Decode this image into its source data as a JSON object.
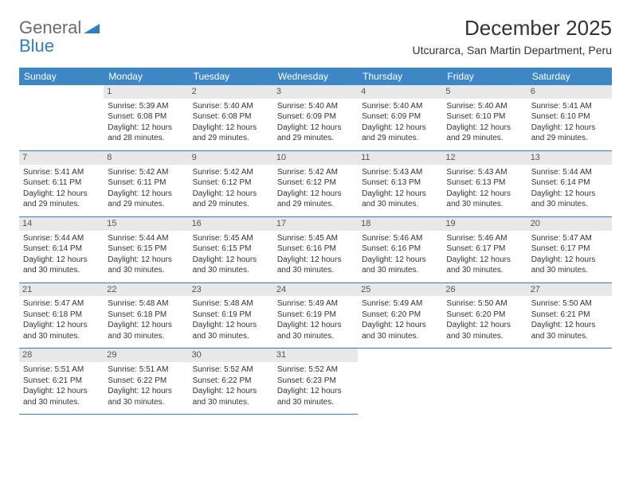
{
  "logo": {
    "text_a": "General",
    "text_b": "Blue"
  },
  "title": "December 2025",
  "location": "Utcurarca, San Martin Department, Peru",
  "colors": {
    "header_bg": "#3d87c7",
    "header_fg": "#ffffff",
    "daynum_bg": "#e8e8e8",
    "border": "#2f7fc2",
    "logo_gray": "#6b6b6b",
    "logo_blue": "#2f7fc2"
  },
  "weekdays": [
    "Sunday",
    "Monday",
    "Tuesday",
    "Wednesday",
    "Thursday",
    "Friday",
    "Saturday"
  ],
  "first_weekday_index": 1,
  "days": [
    {
      "n": 1,
      "sunrise": "5:39 AM",
      "sunset": "6:08 PM",
      "daylight": "12 hours and 28 minutes."
    },
    {
      "n": 2,
      "sunrise": "5:40 AM",
      "sunset": "6:08 PM",
      "daylight": "12 hours and 29 minutes."
    },
    {
      "n": 3,
      "sunrise": "5:40 AM",
      "sunset": "6:09 PM",
      "daylight": "12 hours and 29 minutes."
    },
    {
      "n": 4,
      "sunrise": "5:40 AM",
      "sunset": "6:09 PM",
      "daylight": "12 hours and 29 minutes."
    },
    {
      "n": 5,
      "sunrise": "5:40 AM",
      "sunset": "6:10 PM",
      "daylight": "12 hours and 29 minutes."
    },
    {
      "n": 6,
      "sunrise": "5:41 AM",
      "sunset": "6:10 PM",
      "daylight": "12 hours and 29 minutes."
    },
    {
      "n": 7,
      "sunrise": "5:41 AM",
      "sunset": "6:11 PM",
      "daylight": "12 hours and 29 minutes."
    },
    {
      "n": 8,
      "sunrise": "5:42 AM",
      "sunset": "6:11 PM",
      "daylight": "12 hours and 29 minutes."
    },
    {
      "n": 9,
      "sunrise": "5:42 AM",
      "sunset": "6:12 PM",
      "daylight": "12 hours and 29 minutes."
    },
    {
      "n": 10,
      "sunrise": "5:42 AM",
      "sunset": "6:12 PM",
      "daylight": "12 hours and 29 minutes."
    },
    {
      "n": 11,
      "sunrise": "5:43 AM",
      "sunset": "6:13 PM",
      "daylight": "12 hours and 30 minutes."
    },
    {
      "n": 12,
      "sunrise": "5:43 AM",
      "sunset": "6:13 PM",
      "daylight": "12 hours and 30 minutes."
    },
    {
      "n": 13,
      "sunrise": "5:44 AM",
      "sunset": "6:14 PM",
      "daylight": "12 hours and 30 minutes."
    },
    {
      "n": 14,
      "sunrise": "5:44 AM",
      "sunset": "6:14 PM",
      "daylight": "12 hours and 30 minutes."
    },
    {
      "n": 15,
      "sunrise": "5:44 AM",
      "sunset": "6:15 PM",
      "daylight": "12 hours and 30 minutes."
    },
    {
      "n": 16,
      "sunrise": "5:45 AM",
      "sunset": "6:15 PM",
      "daylight": "12 hours and 30 minutes."
    },
    {
      "n": 17,
      "sunrise": "5:45 AM",
      "sunset": "6:16 PM",
      "daylight": "12 hours and 30 minutes."
    },
    {
      "n": 18,
      "sunrise": "5:46 AM",
      "sunset": "6:16 PM",
      "daylight": "12 hours and 30 minutes."
    },
    {
      "n": 19,
      "sunrise": "5:46 AM",
      "sunset": "6:17 PM",
      "daylight": "12 hours and 30 minutes."
    },
    {
      "n": 20,
      "sunrise": "5:47 AM",
      "sunset": "6:17 PM",
      "daylight": "12 hours and 30 minutes."
    },
    {
      "n": 21,
      "sunrise": "5:47 AM",
      "sunset": "6:18 PM",
      "daylight": "12 hours and 30 minutes."
    },
    {
      "n": 22,
      "sunrise": "5:48 AM",
      "sunset": "6:18 PM",
      "daylight": "12 hours and 30 minutes."
    },
    {
      "n": 23,
      "sunrise": "5:48 AM",
      "sunset": "6:19 PM",
      "daylight": "12 hours and 30 minutes."
    },
    {
      "n": 24,
      "sunrise": "5:49 AM",
      "sunset": "6:19 PM",
      "daylight": "12 hours and 30 minutes."
    },
    {
      "n": 25,
      "sunrise": "5:49 AM",
      "sunset": "6:20 PM",
      "daylight": "12 hours and 30 minutes."
    },
    {
      "n": 26,
      "sunrise": "5:50 AM",
      "sunset": "6:20 PM",
      "daylight": "12 hours and 30 minutes."
    },
    {
      "n": 27,
      "sunrise": "5:50 AM",
      "sunset": "6:21 PM",
      "daylight": "12 hours and 30 minutes."
    },
    {
      "n": 28,
      "sunrise": "5:51 AM",
      "sunset": "6:21 PM",
      "daylight": "12 hours and 30 minutes."
    },
    {
      "n": 29,
      "sunrise": "5:51 AM",
      "sunset": "6:22 PM",
      "daylight": "12 hours and 30 minutes."
    },
    {
      "n": 30,
      "sunrise": "5:52 AM",
      "sunset": "6:22 PM",
      "daylight": "12 hours and 30 minutes."
    },
    {
      "n": 31,
      "sunrise": "5:52 AM",
      "sunset": "6:23 PM",
      "daylight": "12 hours and 30 minutes."
    }
  ],
  "labels": {
    "sunrise": "Sunrise:",
    "sunset": "Sunset:",
    "daylight": "Daylight:"
  }
}
